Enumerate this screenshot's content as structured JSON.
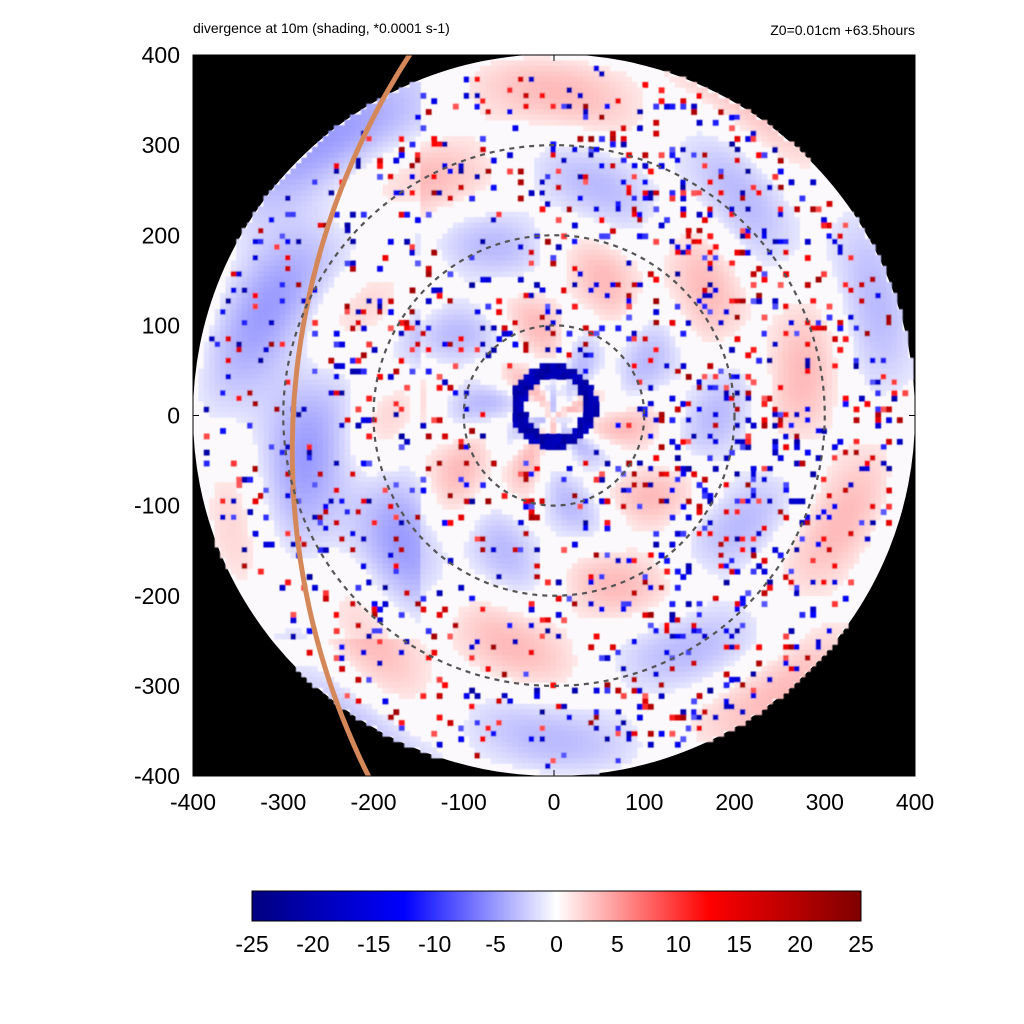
{
  "header": {
    "title": "divergence at 10m (shading, *0.0001 s-1)",
    "info": "Z0=0.01cm  +63.5hours"
  },
  "chart_data": {
    "type": "heatmap",
    "title": "divergence at 10m (shading, *0.0001 s-1)",
    "subtitle": "Z0=0.01cm  +63.5hours",
    "xlim": [
      -400,
      400
    ],
    "ylim": [
      -400,
      400
    ],
    "x_ticks": [
      "-400",
      "-300",
      "-200",
      "-100",
      "0",
      "100",
      "200",
      "300",
      "400"
    ],
    "y_ticks": [
      "400",
      "300",
      "200",
      "100",
      "0",
      "-100",
      "-200",
      "-300",
      "-400"
    ],
    "domain_radius": 400,
    "outside_domain_color": "#000000",
    "range_circles": [
      100,
      200,
      300
    ],
    "eye_wall": {
      "center": [
        0,
        10
      ],
      "radius": 40,
      "value": -22
    },
    "track_line_color": "#d4885a",
    "colorbar": {
      "ticks": [
        "-25",
        "-20",
        "-15",
        "-10",
        "-5",
        "0",
        "5",
        "10",
        "15",
        "20",
        "25"
      ],
      "min": -25,
      "max": 25,
      "colors": [
        "#00007f",
        "#0000ff",
        "#ffffff",
        "#ff0000",
        "#7f0000"
      ]
    },
    "grid": false
  }
}
